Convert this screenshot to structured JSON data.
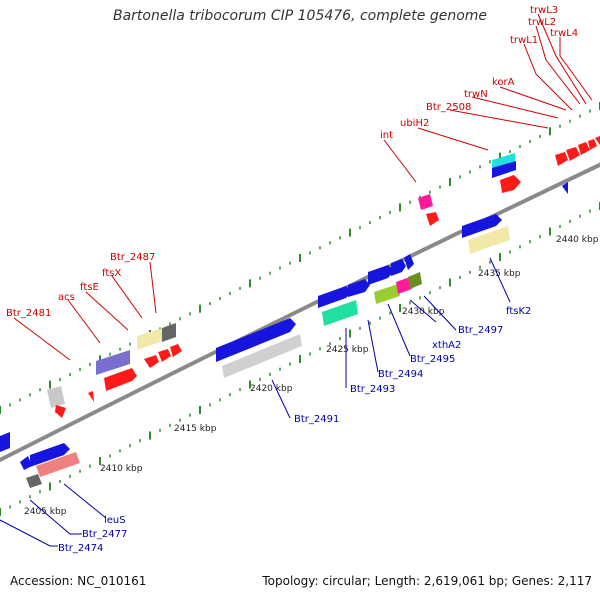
{
  "title": "Bartonella tribocorum CIP 105476, complete genome",
  "footer": {
    "accession": "Accession: NC_010161",
    "summary": "Topology: circular; Length: 2,619,061 bp; Genes: 2,117"
  },
  "colors": {
    "backbone": "#8a8a8a",
    "forward_label": "#cc0000",
    "reverse_label": "#0000aa",
    "tick": "#2e8b2e"
  },
  "scale": {
    "ticks": [
      "2405 kbp",
      "2410 kbp",
      "2415 kbp",
      "2420 kbp",
      "2425 kbp",
      "2430 kbp",
      "2435 kbp",
      "2440 kbp"
    ]
  },
  "labels": {
    "forward": [
      "Btr_2481",
      "acs",
      "ftsE",
      "ftsX",
      "Btr_2487",
      "int",
      "ubiH2",
      "Btr_2508",
      "trwN",
      "korA",
      "trwL1",
      "trwL2",
      "trwL3",
      "trwL4"
    ],
    "reverse": [
      "Btr_2474",
      "Btr_2477",
      "leuS",
      "Btr_2491",
      "Btr_2493",
      "Btr_2494",
      "Btr_2495",
      "xthA2",
      "Btr_2497",
      "ftsK2"
    ]
  }
}
